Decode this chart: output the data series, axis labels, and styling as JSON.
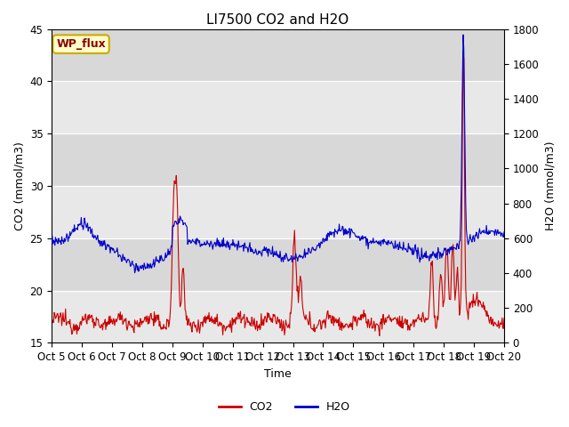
{
  "title": "LI7500 CO2 and H2O",
  "xlabel": "Time",
  "ylabel_left": "CO2 (mmol/m3)",
  "ylabel_right": "H2O (mmol/m3)",
  "ylim_left": [
    15,
    45
  ],
  "ylim_right": [
    0,
    1800
  ],
  "yticks_left": [
    15,
    20,
    25,
    30,
    35,
    40,
    45
  ],
  "yticks_right": [
    0,
    200,
    400,
    600,
    800,
    1000,
    1200,
    1400,
    1600,
    1800
  ],
  "xtick_labels": [
    "Oct 5",
    "Oct 6",
    "Oct 7",
    "Oct 8",
    "Oct 9",
    "Oct 10",
    "Oct 11",
    "Oct 12",
    "Oct 13",
    "Oct 14",
    "Oct 15",
    "Oct 16",
    "Oct 17",
    "Oct 18",
    "Oct 19",
    "Oct 20"
  ],
  "co2_color": "#cc0000",
  "h2o_color": "#0000cc",
  "legend_label_co2": "CO2",
  "legend_label_h2o": "H2O",
  "annotation_text": "WP_flux",
  "annotation_bg": "#ffffcc",
  "annotation_border": "#ccaa00",
  "fig_bg": "#ffffff",
  "plot_bg": "#e8e8e8",
  "band_dark": "#d8d8d8",
  "band_light": "#e8e8e8",
  "grid_color": "#ffffff",
  "title_fontsize": 11,
  "axis_fontsize": 9,
  "tick_fontsize": 8.5,
  "n_days": 15,
  "n_points": 720
}
